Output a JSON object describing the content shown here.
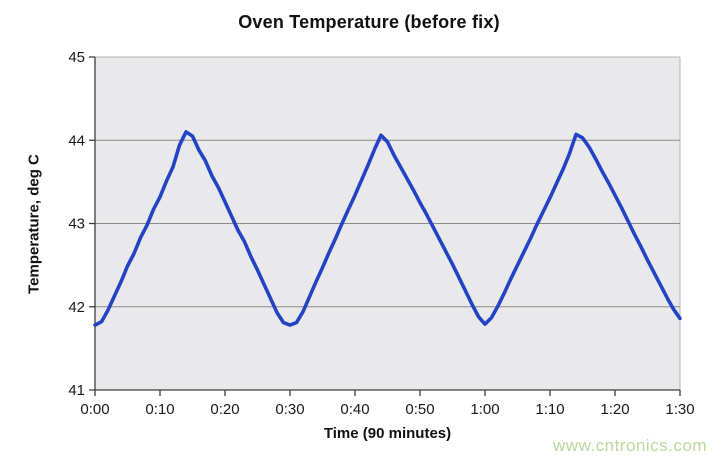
{
  "watermark": {
    "text": "www.cntronics.com",
    "color": "#b9d89d"
  },
  "chart_data": {
    "type": "line",
    "title": "Oven Temperature (before fix)",
    "xlabel": "Time (90 minutes)",
    "ylabel": "Temperature, deg C",
    "xlim": [
      0,
      90
    ],
    "ylim": [
      41,
      45
    ],
    "grid": "horizontal gridlines at each 1 deg C",
    "legend_position": "none",
    "x_unit": "minutes",
    "xticks": {
      "values": [
        0,
        10,
        20,
        30,
        40,
        50,
        60,
        70,
        80,
        90
      ],
      "labels": [
        "0:00",
        "0:10",
        "0:20",
        "0:30",
        "0:40",
        "0:50",
        "1:00",
        "1:10",
        "1:20",
        "1:30"
      ]
    },
    "yticks": {
      "values": [
        45,
        44,
        43,
        42,
        41
      ],
      "labels": [
        "45",
        "44",
        "43",
        "42",
        "41"
      ]
    },
    "colors": {
      "plot_bg": "#e9e9eb",
      "plot_border": "#b5b5b5",
      "grid": "#8a8a8a",
      "axis": "#3f3f3f"
    },
    "series": [
      {
        "name": "Oven temperature",
        "color": "#2443c4",
        "points": [
          [
            0,
            41.78
          ],
          [
            1,
            41.82
          ],
          [
            2,
            41.96
          ],
          [
            3,
            42.13
          ],
          [
            4,
            42.3
          ],
          [
            5,
            42.49
          ],
          [
            6,
            42.64
          ],
          [
            7,
            42.83
          ],
          [
            8,
            42.98
          ],
          [
            9,
            43.17
          ],
          [
            10,
            43.32
          ],
          [
            11,
            43.51
          ],
          [
            12,
            43.68
          ],
          [
            13,
            43.94
          ],
          [
            14,
            44.1
          ],
          [
            15,
            44.05
          ],
          [
            16,
            43.88
          ],
          [
            17,
            43.75
          ],
          [
            18,
            43.57
          ],
          [
            19,
            43.43
          ],
          [
            20,
            43.26
          ],
          [
            21,
            43.09
          ],
          [
            22,
            42.92
          ],
          [
            23,
            42.78
          ],
          [
            24,
            42.6
          ],
          [
            25,
            42.44
          ],
          [
            26,
            42.27
          ],
          [
            27,
            42.1
          ],
          [
            28,
            41.93
          ],
          [
            29,
            41.81
          ],
          [
            30,
            41.78
          ],
          [
            31,
            41.81
          ],
          [
            32,
            41.94
          ],
          [
            33,
            42.12
          ],
          [
            34,
            42.3
          ],
          [
            35,
            42.47
          ],
          [
            36,
            42.65
          ],
          [
            37,
            42.82
          ],
          [
            38,
            43.0
          ],
          [
            39,
            43.17
          ],
          [
            40,
            43.34
          ],
          [
            41,
            43.52
          ],
          [
            42,
            43.7
          ],
          [
            43,
            43.89
          ],
          [
            44,
            44.06
          ],
          [
            45,
            43.98
          ],
          [
            46,
            43.82
          ],
          [
            47,
            43.68
          ],
          [
            48,
            43.54
          ],
          [
            49,
            43.4
          ],
          [
            50,
            43.25
          ],
          [
            51,
            43.11
          ],
          [
            52,
            42.96
          ],
          [
            53,
            42.81
          ],
          [
            54,
            42.66
          ],
          [
            55,
            42.51
          ],
          [
            56,
            42.35
          ],
          [
            57,
            42.19
          ],
          [
            58,
            42.03
          ],
          [
            59,
            41.88
          ],
          [
            60,
            41.79
          ],
          [
            61,
            41.87
          ],
          [
            62,
            42.01
          ],
          [
            63,
            42.17
          ],
          [
            64,
            42.34
          ],
          [
            65,
            42.5
          ],
          [
            66,
            42.66
          ],
          [
            67,
            42.82
          ],
          [
            68,
            42.99
          ],
          [
            69,
            43.15
          ],
          [
            70,
            43.31
          ],
          [
            71,
            43.48
          ],
          [
            72,
            43.65
          ],
          [
            73,
            43.84
          ],
          [
            74,
            44.07
          ],
          [
            75,
            44.03
          ],
          [
            76,
            43.92
          ],
          [
            77,
            43.78
          ],
          [
            78,
            43.63
          ],
          [
            79,
            43.49
          ],
          [
            80,
            43.34
          ],
          [
            81,
            43.19
          ],
          [
            82,
            43.03
          ],
          [
            83,
            42.87
          ],
          [
            84,
            42.72
          ],
          [
            85,
            42.56
          ],
          [
            86,
            42.41
          ],
          [
            87,
            42.26
          ],
          [
            88,
            42.11
          ],
          [
            89,
            41.97
          ],
          [
            90,
            41.86
          ]
        ]
      }
    ]
  }
}
